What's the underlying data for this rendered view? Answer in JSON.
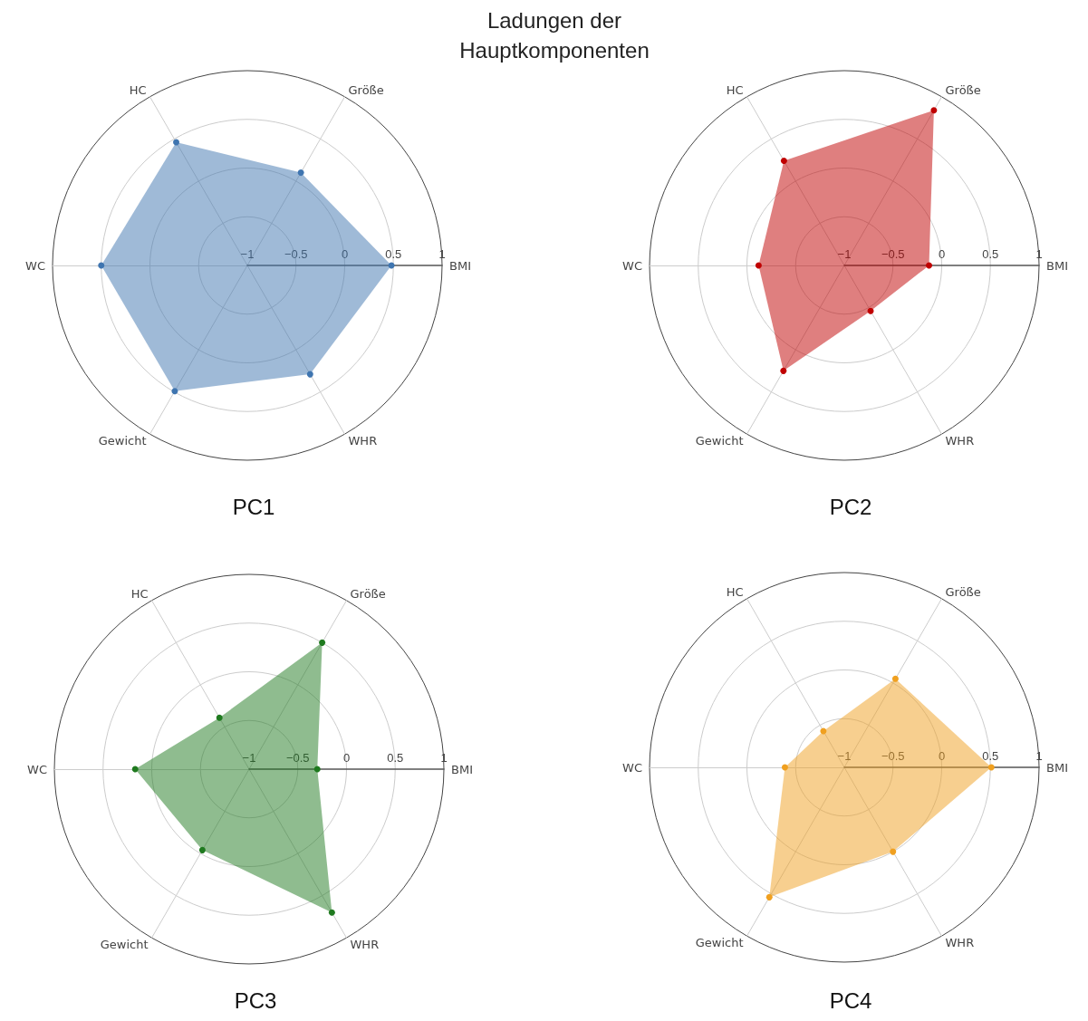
{
  "chart_data": [
    {
      "type": "radar",
      "title": "PC1",
      "annotations": [
        "Ladungen der Hauptkomponenten"
      ],
      "categories": [
        "Größe",
        "BMI",
        "WHR",
        "Gewicht",
        "WC",
        "HC"
      ],
      "ylim": [
        -1,
        1
      ],
      "yticks": [
        -1,
        -0.5,
        0,
        0.5,
        1
      ],
      "grid": true,
      "marker": "circle",
      "series": [
        {
          "color": "#3f75b0",
          "values": [
            0.1,
            0.48,
            0.29,
            0.49,
            0.5,
            0.46
          ]
        }
      ]
    },
    {
      "type": "radar",
      "title": "PC2",
      "categories": [
        "Größe",
        "BMI",
        "WHR",
        "Gewicht",
        "WC",
        "HC"
      ],
      "ylim": [
        -1,
        1
      ],
      "yticks": [
        -1,
        -0.5,
        0,
        0.5,
        1
      ],
      "grid": true,
      "marker": "circle",
      "series": [
        {
          "color": "#c00000",
          "values": [
            0.84,
            -0.13,
            -0.46,
            0.25,
            -0.12,
            0.24
          ]
        }
      ]
    },
    {
      "type": "radar",
      "title": "PC3",
      "categories": [
        "Größe",
        "BMI",
        "WHR",
        "Gewicht",
        "WC",
        "HC"
      ],
      "ylim": [
        -1,
        1
      ],
      "yticks": [
        -1,
        -0.5,
        0,
        0.5,
        1
      ],
      "grid": true,
      "marker": "circle",
      "series": [
        {
          "color": "#1f7a1f",
          "values": [
            0.5,
            -0.3,
            0.7,
            -0.04,
            0.17,
            -0.39
          ]
        }
      ]
    },
    {
      "type": "radar",
      "title": "PC4",
      "categories": [
        "Größe",
        "BMI",
        "WHR",
        "Gewicht",
        "WC",
        "HC"
      ],
      "ylim": [
        -1,
        1
      ],
      "yticks": [
        -1,
        -0.5,
        0,
        0.5,
        1
      ],
      "grid": true,
      "marker": "circle",
      "series": [
        {
          "color": "#f0a020",
          "values": [
            0.05,
            0.51,
            0.0,
            0.54,
            -0.39,
            -0.57
          ]
        }
      ]
    }
  ]
}
